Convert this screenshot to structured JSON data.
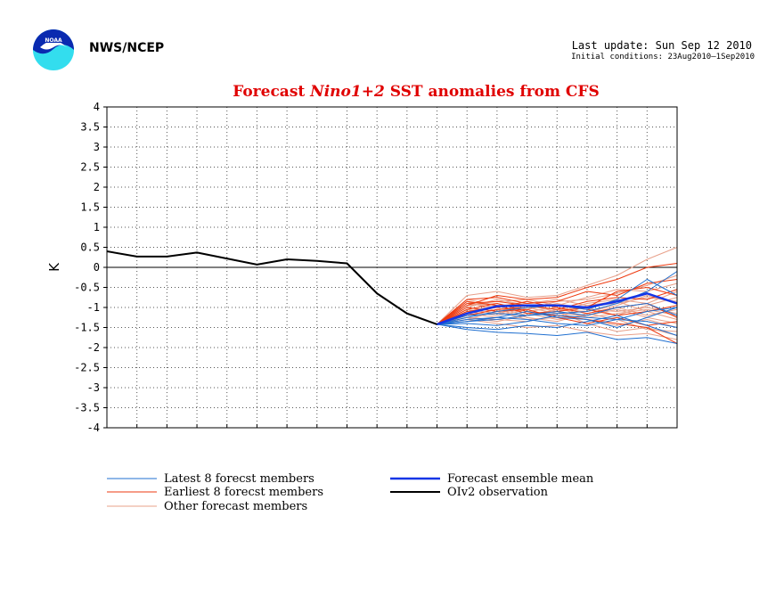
{
  "header": {
    "agency": "NWS/NCEP",
    "last_update": "Last update: Sun Sep 12 2010",
    "initial_conditions": "Initial conditions: 23Aug2010–1Sep2010",
    "logo": "noaa-logo"
  },
  "chart_data": {
    "type": "line",
    "title_parts": [
      "Forecast ",
      "Nino1+2",
      " SST anomalies from CFS"
    ],
    "ylabel": "K",
    "xlabel": "",
    "ylim": [
      -4,
      4
    ],
    "yticks": [
      "4",
      "3.5",
      "3",
      "2.5",
      "2",
      "1.5",
      "1",
      "0.5",
      "0",
      "-0.5",
      "-1",
      "-1.5",
      "-2",
      "-2.5",
      "-3",
      "-3.5",
      "-4"
    ],
    "xlim": [
      0,
      19
    ],
    "grid": true,
    "colors": {
      "latest": "#1f6fd0",
      "earliest": "#ee3a10",
      "other": "#e8a08a",
      "mean": "#1535e6",
      "obs": "#000000",
      "title": "#e00000"
    },
    "legend": [
      {
        "label": "Latest 8 forecst members",
        "color": "#1f6fd0",
        "width": 1
      },
      {
        "label": "Earliest 8 forecst members",
        "color": "#ee3a10",
        "width": 1
      },
      {
        "label": "Other forecast members",
        "color": "#e8a08a",
        "width": 1
      },
      {
        "label": "Forecast ensemble mean",
        "color": "#1535e6",
        "width": 2.5
      },
      {
        "label": "OIv2 observation",
        "color": "#000000",
        "width": 2
      }
    ],
    "observation": {
      "x": [
        0,
        1,
        2,
        3,
        4,
        5,
        6,
        7,
        8,
        9,
        10,
        11
      ],
      "y": [
        0.4,
        0.27,
        0.27,
        0.37,
        0.22,
        0.07,
        0.2,
        0.16,
        0.1,
        -0.65,
        -1.15,
        -1.42
      ]
    },
    "forecast_x": [
      11,
      12,
      13,
      14,
      15,
      16,
      17,
      18,
      19
    ],
    "ensemble_mean": [
      -1.42,
      -1.15,
      -0.97,
      -0.95,
      -0.95,
      -1.0,
      -0.85,
      -0.65,
      -0.9
    ],
    "latest_members": [
      [
        -1.42,
        -1.55,
        -1.62,
        -1.65,
        -1.7,
        -1.62,
        -1.8,
        -1.75,
        -1.9
      ],
      [
        -1.42,
        -1.35,
        -1.3,
        -1.2,
        -1.15,
        -1.1,
        -0.9,
        -0.6,
        -0.1
      ],
      [
        -1.42,
        -1.4,
        -1.45,
        -1.35,
        -1.2,
        -1.25,
        -1.3,
        -1.1,
        -1.0
      ],
      [
        -1.42,
        -1.3,
        -1.25,
        -1.3,
        -1.4,
        -1.45,
        -1.3,
        -1.35,
        -1.5
      ],
      [
        -1.42,
        -1.25,
        -1.1,
        -1.0,
        -0.95,
        -1.05,
        -0.8,
        -0.3,
        -0.7
      ],
      [
        -1.42,
        -1.5,
        -1.55,
        -1.45,
        -1.5,
        -1.35,
        -1.2,
        -1.45,
        -1.7
      ],
      [
        -1.42,
        -1.2,
        -1.15,
        -1.2,
        -1.1,
        -1.2,
        -1.0,
        -0.9,
        -1.2
      ],
      [
        -1.42,
        -1.35,
        -1.25,
        -1.1,
        -1.25,
        -1.3,
        -1.5,
        -1.25,
        -1.0
      ]
    ],
    "earliest_members": [
      [
        -1.42,
        -0.95,
        -0.7,
        -0.8,
        -0.75,
        -0.5,
        -0.3,
        0.0,
        0.1
      ],
      [
        -1.42,
        -0.8,
        -0.75,
        -0.9,
        -0.85,
        -0.6,
        -0.7,
        -0.4,
        -0.3
      ],
      [
        -1.42,
        -1.05,
        -0.9,
        -1.1,
        -1.2,
        -1.3,
        -1.4,
        -1.5,
        -1.9
      ],
      [
        -1.42,
        -1.1,
        -1.0,
        -0.85,
        -1.0,
        -1.15,
        -1.0,
        -0.9,
        -1.25
      ],
      [
        -1.42,
        -0.9,
        -0.85,
        -0.95,
        -1.05,
        -0.85,
        -0.75,
        -0.8,
        -0.55
      ],
      [
        -1.42,
        -1.2,
        -1.05,
        -1.0,
        -0.95,
        -1.05,
        -1.2,
        -1.1,
        -0.95
      ],
      [
        -1.42,
        -0.85,
        -0.95,
        -1.15,
        -1.1,
        -1.0,
        -0.6,
        -0.5,
        -0.7
      ],
      [
        -1.42,
        -1.0,
        -1.1,
        -1.05,
        -1.25,
        -1.4,
        -1.25,
        -1.45,
        -1.35
      ]
    ],
    "other_members": [
      [
        -1.42,
        -0.7,
        -0.6,
        -0.75,
        -0.7,
        -0.45,
        -0.2,
        0.2,
        0.5
      ],
      [
        -1.42,
        -1.3,
        -1.4,
        -1.5,
        -1.45,
        -1.6,
        -1.7,
        -1.65,
        -1.8
      ],
      [
        -1.42,
        -0.9,
        -1.0,
        -1.2,
        -1.1,
        -0.9,
        -0.8,
        -0.9,
        -0.6
      ],
      [
        -1.42,
        -1.1,
        -1.2,
        -1.05,
        -0.9,
        -1.05,
        -1.1,
        -1.0,
        -1.15
      ],
      [
        -1.42,
        -1.25,
        -1.3,
        -1.35,
        -1.2,
        -1.3,
        -1.45,
        -1.3,
        -1.5
      ],
      [
        -1.42,
        -0.95,
        -0.85,
        -0.8,
        -0.95,
        -0.75,
        -0.55,
        -0.6,
        -0.4
      ],
      [
        -1.42,
        -1.05,
        -1.15,
        -1.0,
        -1.15,
        -1.2,
        -1.05,
        -1.25,
        -1.4
      ],
      [
        -1.42,
        -0.8,
        -0.95,
        -0.9,
        -0.8,
        -0.95,
        -0.9,
        -0.75,
        -0.85
      ],
      [
        -1.42,
        -1.2,
        -1.05,
        -1.25,
        -1.35,
        -1.15,
        -1.3,
        -1.55,
        -1.6
      ],
      [
        -1.42,
        -1.0,
        -0.8,
        -0.95,
        -1.05,
        -1.1,
        -0.95,
        -0.7,
        -0.9
      ],
      [
        -1.42,
        -1.15,
        -1.25,
        -1.1,
        -1.0,
        -1.25,
        -1.15,
        -1.05,
        -1.2
      ],
      [
        -1.42,
        -0.85,
        -1.1,
        -1.3,
        -1.25,
        -0.95,
        -0.85,
        -1.1,
        -1.3
      ],
      [
        -1.42,
        -1.3,
        -1.1,
        -0.95,
        -1.1,
        -1.4,
        -1.6,
        -1.5,
        -1.7
      ],
      [
        -1.42,
        -0.95,
        -0.9,
        -1.05,
        -0.85,
        -0.8,
        -0.65,
        -0.45,
        -0.2
      ],
      [
        -1.42,
        -1.1,
        -0.95,
        -1.15,
        -1.3,
        -1.2,
        -1.0,
        -1.2,
        -1.05
      ],
      [
        -1.42,
        -1.25,
        -1.35,
        -1.2,
        -1.05,
        -1.0,
        -1.2,
        -0.95,
        -0.75
      ]
    ]
  }
}
